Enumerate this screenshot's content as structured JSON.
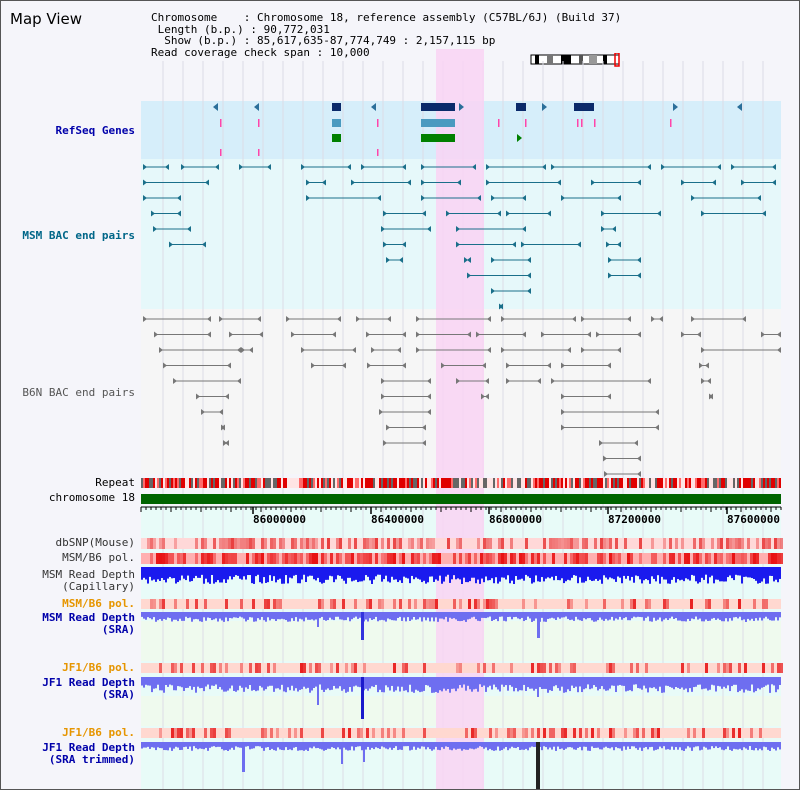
{
  "title": "Map View",
  "info": {
    "chromosome_label": "Chromosome",
    "chromosome_value": "Chromosome 18, reference assembly (C57BL/6J) (Build 37)",
    "length_label": "Length (b.p.)",
    "length_value": "90,772,031",
    "show_label": "Show (b.p.)",
    "show_value": "85,617,635-87,774,749 : 2,157,115 bp",
    "span_label": "Read coverage check span",
    "span_value": "10,000"
  },
  "tracks": {
    "refseq": "RefSeq Genes",
    "msm_bac": "MSM BAC end pairs",
    "b6n_bac": "B6N BAC end pairs",
    "repeat": "Repeat",
    "chromosome": "chromosome 18",
    "dbsnp": "dbSNP(Mouse)",
    "msm_b6_pol1": "MSM/B6 pol.",
    "msm_depth_cap": "MSM Read Depth\n(Capillary)",
    "msm_b6_pol2": "MSM/B6 pol.",
    "msm_depth_sra": "MSM Read Depth\n(SRA)",
    "jf1_b6_pol1": "JF1/B6 pol.",
    "jf1_depth_sra": "JF1 Read Depth\n(SRA)",
    "jf1_b6_pol2": "JF1/B6 pol.",
    "jf1_depth_trim": "JF1 Read Depth\n(SRA trimmed)"
  },
  "axis": {
    "ticks": [
      "86000000",
      "86400000",
      "86800000",
      "87200000",
      "87600000"
    ]
  },
  "colors": {
    "refseq_bg": "#d6eefa",
    "bac_bg": "#e6f8fa",
    "highlight": "#f9d4f3",
    "chromosome_bar": "#006400",
    "depth_blue": "#1a1aee",
    "depth_light": "#6e6ef0"
  }
}
